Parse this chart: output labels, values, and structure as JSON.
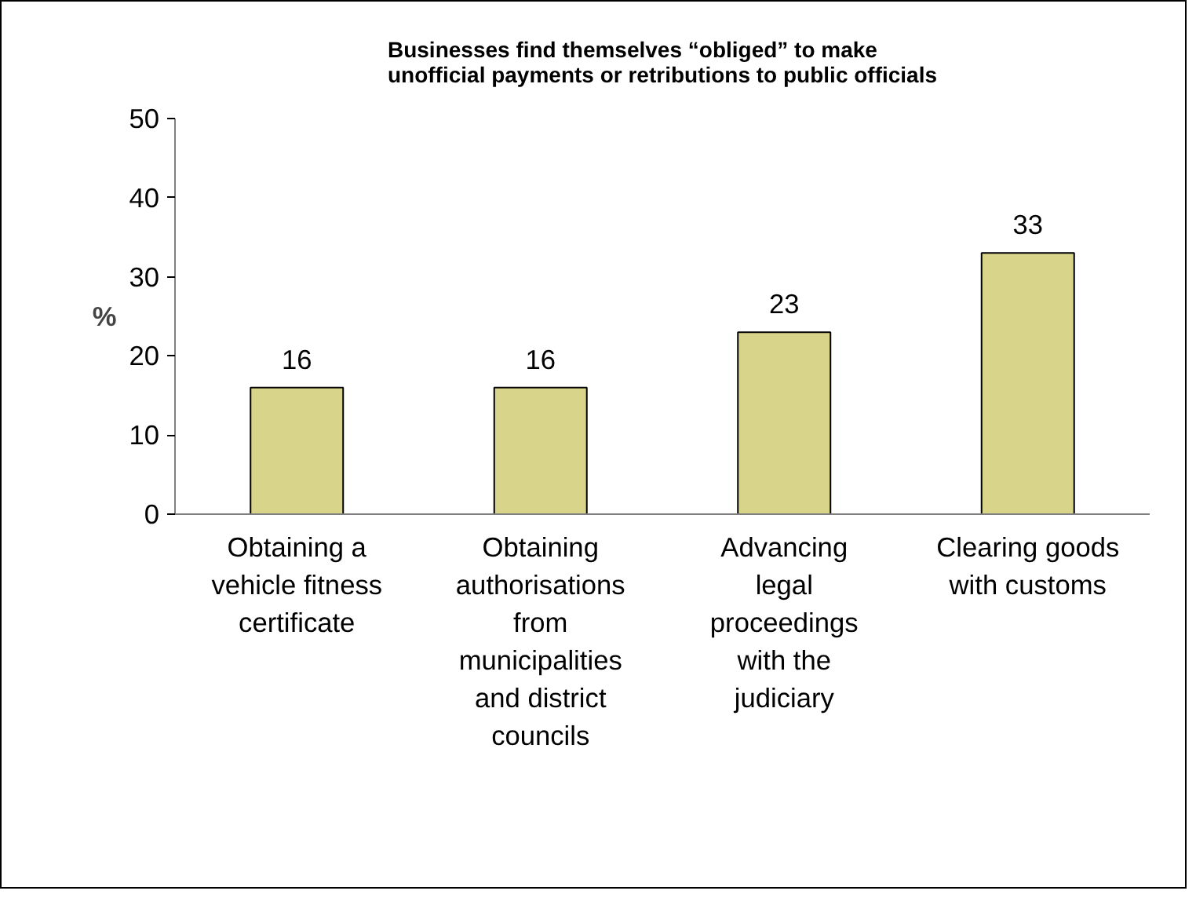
{
  "chart_data": {
    "type": "bar",
    "title": "Businesses find themselves “obliged” to make\nunofficial payments or retributions to public officials",
    "ylabel": "%",
    "categories": [
      "Obtaining a\nvehicle fitness\ncertificate",
      "Obtaining\nauthorisations\nfrom\nmunicipalities\nand district\ncouncils",
      "Advancing\nlegal\nproceedings\nwith the\njudiciary",
      "Clearing goods\nwith customs"
    ],
    "values": [
      16,
      16,
      23,
      33
    ],
    "color": "#d8d48a",
    "ylim": [
      0,
      50
    ],
    "yticks": [
      0,
      10,
      20,
      30,
      40,
      50
    ],
    "grid": false,
    "data_labels": true
  }
}
